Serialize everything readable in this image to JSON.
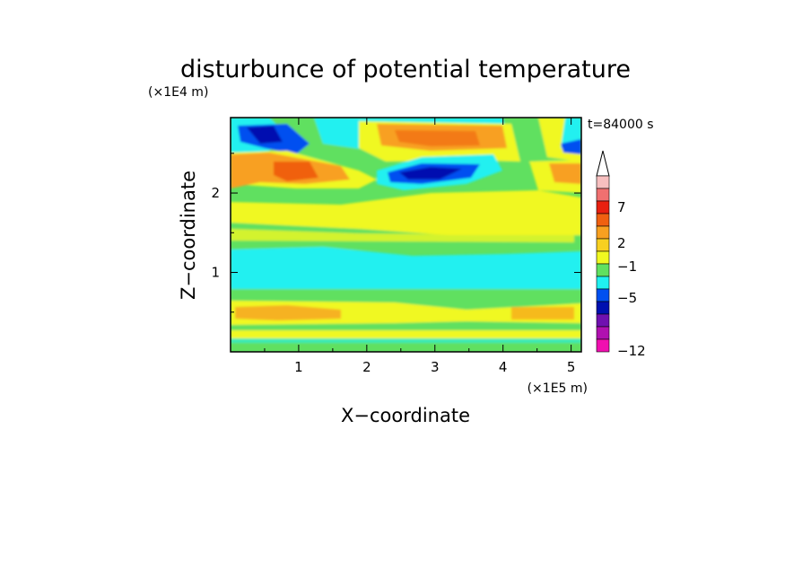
{
  "chart_data": {
    "type": "heatmap",
    "title": "disturbunce of potential temperature",
    "xlabel": "X−coordinate",
    "ylabel": "Z−coordinate",
    "x_scale_label": "(×1E5 m)",
    "y_scale_label": "(×1E4 m)",
    "time_label": "t=84000 s",
    "xlim": [
      0,
      5.15
    ],
    "ylim": [
      0,
      2.95
    ],
    "x_ticks": [
      "1",
      "2",
      "3",
      "4",
      "5"
    ],
    "y_ticks": [
      "1",
      "2"
    ],
    "colorbar": {
      "labels": [
        "7",
        "2",
        "−1",
        "−5",
        "−12"
      ],
      "colors": [
        "#f7bfbf",
        "#f07070",
        "#e82010",
        "#f06010",
        "#f8a020",
        "#f8d020",
        "#f0f820",
        "#60e060",
        "#20f0f0",
        "#0050f0",
        "#0010b0",
        "#7010b0",
        "#b010b0",
        "#f010b0"
      ]
    },
    "field_bands": [
      {
        "z": [
          2.55,
          2.95
        ],
        "value": "-3 to 3"
      },
      {
        "z": [
          2.0,
          2.55
        ],
        "value": "1 to 4"
      },
      {
        "z": [
          1.2,
          2.0
        ],
        "value": "0 to 2"
      },
      {
        "z": [
          0.7,
          1.2
        ],
        "value": "-1"
      },
      {
        "z": [
          0.0,
          0.7
        ],
        "value": "0 to 2"
      }
    ]
  }
}
